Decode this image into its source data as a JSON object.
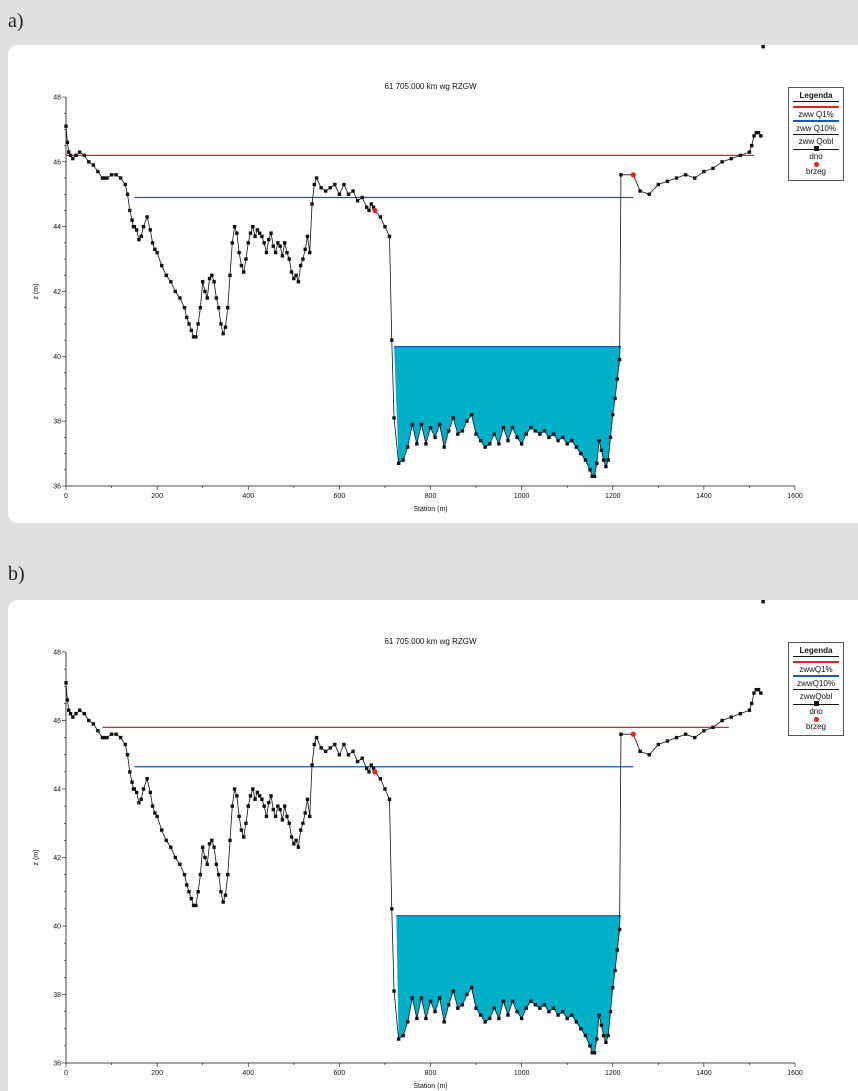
{
  "colors": {
    "q1": "#e8211c",
    "q10": "#1658b8",
    "water": "#00b0c8",
    "bed": "#111111",
    "bank": "#e8211c",
    "background": "#e0e0e0"
  },
  "legend": {
    "title": "Legenda",
    "q1": "zww Q1%",
    "q10": "zww Q10%",
    "qobl": "zww Qobl",
    "bed": "dno",
    "bank": "brzeg"
  },
  "legend_b": {
    "title": "Legenda",
    "q1": "zwwQ1%",
    "q10": "zwwQ10%",
    "qobl": "zwwQobl",
    "bed": "dno",
    "bank": "brzeg"
  },
  "panels": {
    "a": "a)",
    "b": "b)"
  },
  "chart_data": [
    {
      "type": "line",
      "panel": "a)",
      "title": "61  705.000  km wg RZGW",
      "xlabel": "Station (m)",
      "ylabel": "z  (m)",
      "xlim": [
        0,
        1600
      ],
      "ylim": [
        36,
        48
      ],
      "xticks": [
        0,
        200,
        400,
        600,
        800,
        1000,
        1200,
        1400,
        1600
      ],
      "yticks": [
        36,
        38,
        40,
        42,
        44,
        46,
        48
      ],
      "grid": false,
      "legend_position": "top-right",
      "water_levels": [
        {
          "name": "zww Q1%",
          "z": 46.2,
          "x": [
            0,
            1510
          ]
        },
        {
          "name": "zww Q10%",
          "z": 44.9,
          "x": [
            150,
            1245
          ]
        },
        {
          "name": "zww Qobl",
          "z": 40.3,
          "x": [
            720,
            1218
          ]
        }
      ],
      "bank_points": {
        "name": "brzeg",
        "x": [
          678,
          1245
        ],
        "z": [
          44.5,
          45.6
        ]
      },
      "bed_profile": {
        "name": "dno",
        "x": [
          0,
          3,
          6,
          10,
          15,
          22,
          30,
          40,
          50,
          60,
          70,
          80,
          85,
          90,
          100,
          110,
          120,
          130,
          135,
          140,
          145,
          148,
          150,
          155,
          160,
          165,
          170,
          178,
          185,
          190,
          195,
          200,
          210,
          220,
          230,
          240,
          250,
          260,
          265,
          270,
          275,
          280,
          285,
          290,
          295,
          300,
          305,
          310,
          315,
          320,
          325,
          330,
          335,
          340,
          345,
          350,
          355,
          360,
          365,
          370,
          375,
          380,
          385,
          390,
          395,
          400,
          405,
          410,
          415,
          420,
          425,
          430,
          435,
          440,
          445,
          450,
          455,
          460,
          465,
          470,
          475,
          480,
          485,
          490,
          495,
          500,
          505,
          510,
          515,
          520,
          525,
          530,
          535,
          540,
          545,
          550,
          560,
          570,
          580,
          590,
          600,
          610,
          620,
          630,
          640,
          650,
          660,
          665,
          670,
          675,
          678,
          690,
          700,
          710,
          715,
          720,
          730,
          740,
          750,
          760,
          770,
          780,
          790,
          800,
          810,
          820,
          830,
          840,
          850,
          860,
          870,
          880,
          890,
          900,
          910,
          920,
          930,
          940,
          950,
          960,
          970,
          980,
          990,
          1000,
          1010,
          1020,
          1030,
          1040,
          1050,
          1060,
          1070,
          1080,
          1090,
          1100,
          1110,
          1120,
          1130,
          1140,
          1150,
          1155,
          1160,
          1165,
          1170,
          1175,
          1180,
          1185,
          1190,
          1195,
          1200,
          1205,
          1210,
          1215,
          1218,
          1245,
          1260,
          1280,
          1300,
          1320,
          1340,
          1360,
          1380,
          1400,
          1420,
          1440,
          1460,
          1480,
          1500,
          1505,
          1510,
          1515,
          1520,
          1525,
          1530
        ],
        "z": [
          47.1,
          46.6,
          46.3,
          46.2,
          46.1,
          46.2,
          46.3,
          46.2,
          46.0,
          45.9,
          45.7,
          45.5,
          45.5,
          45.5,
          45.6,
          45.6,
          45.5,
          45.3,
          45.0,
          44.5,
          44.2,
          44.0,
          44.0,
          43.9,
          43.6,
          43.7,
          44.0,
          44.3,
          43.9,
          43.5,
          43.3,
          43.2,
          42.8,
          42.5,
          42.3,
          42.0,
          41.8,
          41.5,
          41.2,
          41.0,
          40.8,
          40.6,
          40.6,
          41.0,
          41.5,
          42.3,
          42.0,
          41.8,
          42.4,
          42.5,
          42.3,
          41.8,
          41.5,
          41.0,
          40.7,
          40.9,
          41.5,
          42.5,
          43.5,
          44.0,
          43.8,
          43.2,
          42.8,
          42.6,
          43.0,
          43.5,
          43.8,
          44.0,
          43.7,
          43.9,
          43.8,
          43.7,
          43.5,
          43.2,
          43.6,
          43.8,
          43.4,
          43.2,
          43.5,
          43.4,
          43.1,
          43.5,
          43.2,
          43.0,
          42.6,
          42.4,
          42.5,
          42.3,
          42.8,
          43.0,
          43.3,
          43.7,
          43.2,
          44.7,
          45.3,
          45.5,
          45.2,
          45.1,
          45.2,
          45.3,
          45.0,
          45.3,
          45.0,
          45.1,
          44.8,
          44.9,
          44.6,
          44.5,
          44.7,
          44.6,
          44.5,
          44.3,
          44.0,
          43.7,
          40.5,
          38.1,
          36.7,
          36.8,
          37.2,
          37.9,
          37.3,
          37.9,
          37.3,
          37.8,
          37.5,
          37.9,
          37.2,
          37.7,
          38.1,
          37.6,
          37.7,
          38.0,
          38.2,
          37.6,
          37.4,
          37.2,
          37.3,
          37.6,
          37.3,
          37.8,
          37.4,
          37.8,
          37.5,
          37.3,
          37.6,
          37.8,
          37.7,
          37.6,
          37.7,
          37.5,
          37.6,
          37.4,
          37.5,
          37.3,
          37.4,
          37.2,
          37.0,
          36.8,
          36.5,
          36.3,
          36.3,
          36.7,
          37.4,
          37.1,
          36.8,
          36.6,
          36.8,
          37.5,
          38.2,
          38.7,
          39.3,
          39.9,
          45.6,
          45.6,
          45.1,
          45.0,
          45.3,
          45.4,
          45.5,
          45.6,
          45.5,
          45.7,
          45.8,
          46.0,
          46.1,
          46.2,
          46.3,
          46.5,
          46.8,
          46.9,
          46.9,
          46.8
        ]
      }
    },
    {
      "type": "line",
      "panel": "b)",
      "title": "61  705.000  km wg RZGW",
      "xlabel": "Station (m)",
      "ylabel": "z  (m)",
      "xlim": [
        0,
        1600
      ],
      "ylim": [
        36,
        48
      ],
      "xticks": [
        0,
        200,
        400,
        600,
        800,
        1000,
        1200,
        1400,
        1600
      ],
      "yticks": [
        36,
        38,
        40,
        42,
        44,
        46,
        48
      ],
      "grid": false,
      "legend_position": "top-right",
      "water_levels": [
        {
          "name": "zwwQ1%",
          "z": 45.8,
          "x": [
            80,
            1455
          ]
        },
        {
          "name": "zwwQ10%",
          "z": 44.65,
          "x": [
            150,
            1245
          ]
        },
        {
          "name": "zwwQobl",
          "z": 40.3,
          "x": [
            725,
            1218
          ]
        }
      ],
      "bank_points": {
        "name": "brzeg",
        "x": [
          678,
          1245
        ],
        "z": [
          44.5,
          45.6
        ]
      },
      "bed_profile": {
        "name": "dno",
        "x": [
          0,
          3,
          6,
          10,
          15,
          22,
          30,
          40,
          50,
          60,
          70,
          80,
          85,
          90,
          100,
          110,
          120,
          130,
          135,
          140,
          145,
          148,
          150,
          155,
          160,
          165,
          170,
          178,
          185,
          190,
          195,
          200,
          210,
          220,
          230,
          240,
          250,
          260,
          265,
          270,
          275,
          280,
          285,
          290,
          295,
          300,
          305,
          310,
          315,
          320,
          325,
          330,
          335,
          340,
          345,
          350,
          355,
          360,
          365,
          370,
          375,
          380,
          385,
          390,
          395,
          400,
          405,
          410,
          415,
          420,
          425,
          430,
          435,
          440,
          445,
          450,
          455,
          460,
          465,
          470,
          475,
          480,
          485,
          490,
          495,
          500,
          505,
          510,
          515,
          520,
          525,
          530,
          535,
          540,
          545,
          550,
          560,
          570,
          580,
          590,
          600,
          610,
          620,
          630,
          640,
          650,
          660,
          665,
          670,
          675,
          678,
          690,
          700,
          710,
          715,
          720,
          730,
          740,
          750,
          760,
          770,
          780,
          790,
          800,
          810,
          820,
          830,
          840,
          850,
          860,
          870,
          880,
          890,
          900,
          910,
          920,
          930,
          940,
          950,
          960,
          970,
          980,
          990,
          1000,
          1010,
          1020,
          1030,
          1040,
          1050,
          1060,
          1070,
          1080,
          1090,
          1100,
          1110,
          1120,
          1130,
          1140,
          1150,
          1155,
          1160,
          1165,
          1170,
          1175,
          1180,
          1185,
          1190,
          1195,
          1200,
          1205,
          1210,
          1215,
          1218,
          1245,
          1260,
          1280,
          1300,
          1320,
          1340,
          1360,
          1380,
          1400,
          1420,
          1440,
          1460,
          1480,
          1500,
          1505,
          1510,
          1515,
          1520,
          1525,
          1530
        ],
        "z": [
          47.1,
          46.6,
          46.3,
          46.2,
          46.1,
          46.2,
          46.3,
          46.2,
          46.0,
          45.9,
          45.7,
          45.5,
          45.5,
          45.5,
          45.6,
          45.6,
          45.5,
          45.3,
          45.0,
          44.5,
          44.2,
          44.0,
          44.0,
          43.9,
          43.6,
          43.7,
          44.0,
          44.3,
          43.9,
          43.5,
          43.3,
          43.2,
          42.8,
          42.5,
          42.3,
          42.0,
          41.8,
          41.5,
          41.2,
          41.0,
          40.8,
          40.6,
          40.6,
          41.0,
          41.5,
          42.3,
          42.0,
          41.8,
          42.4,
          42.5,
          42.3,
          41.8,
          41.5,
          41.0,
          40.7,
          40.9,
          41.5,
          42.5,
          43.5,
          44.0,
          43.8,
          43.2,
          42.8,
          42.6,
          43.0,
          43.5,
          43.8,
          44.0,
          43.7,
          43.9,
          43.8,
          43.7,
          43.5,
          43.2,
          43.6,
          43.8,
          43.4,
          43.2,
          43.5,
          43.4,
          43.1,
          43.5,
          43.2,
          43.0,
          42.6,
          42.4,
          42.5,
          42.3,
          42.8,
          43.0,
          43.3,
          43.7,
          43.2,
          44.7,
          45.3,
          45.5,
          45.2,
          45.1,
          45.2,
          45.3,
          45.0,
          45.3,
          45.0,
          45.1,
          44.8,
          44.9,
          44.6,
          44.5,
          44.7,
          44.6,
          44.5,
          44.3,
          44.0,
          43.7,
          40.5,
          38.1,
          36.7,
          36.8,
          37.2,
          37.9,
          37.3,
          37.9,
          37.3,
          37.8,
          37.5,
          37.9,
          37.2,
          37.7,
          38.1,
          37.6,
          37.7,
          38.0,
          38.2,
          37.6,
          37.4,
          37.2,
          37.3,
          37.6,
          37.3,
          37.8,
          37.4,
          37.8,
          37.5,
          37.3,
          37.6,
          37.8,
          37.7,
          37.6,
          37.7,
          37.5,
          37.6,
          37.4,
          37.5,
          37.3,
          37.4,
          37.2,
          37.0,
          36.8,
          36.5,
          36.3,
          36.3,
          36.7,
          37.4,
          37.1,
          36.8,
          36.6,
          36.8,
          37.5,
          38.2,
          38.7,
          39.3,
          39.9,
          45.6,
          45.6,
          45.1,
          45.0,
          45.3,
          45.4,
          45.5,
          45.6,
          45.5,
          45.7,
          45.8,
          46.0,
          46.1,
          46.2,
          46.3,
          46.5,
          46.8,
          46.9,
          46.9,
          46.8
        ]
      }
    }
  ]
}
